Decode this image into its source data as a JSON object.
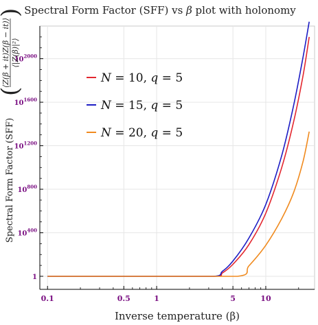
{
  "chart_data": {
    "type": "line",
    "title": "Spectral Form Factor (SFF) vs β plot with holonomy",
    "title_parts": {
      "before": "Spectral Form Factor (SFF) vs ",
      "beta": "β",
      "after": " plot with holonomy"
    },
    "xlabel": "Inverse temperature (β)",
    "ylabel": "Spectral Form Factor (SFF)",
    "ylabel_formula": {
      "numerator": "⟨Z(β + it)Z(β − it)⟩",
      "denominator": "⟨|Z(β)|²⟩"
    },
    "x_scale": "log",
    "xlim": [
      0.085,
      28
    ],
    "y_scale": "log10",
    "ylim_log10": [
      -120,
      2300
    ],
    "x_ticks": [
      {
        "value": 0.1,
        "label": "0.1"
      },
      {
        "value": 0.5,
        "label": "0.5"
      },
      {
        "value": 1,
        "label": "1"
      },
      {
        "value": 5,
        "label": "5"
      },
      {
        "value": 10,
        "label": "10"
      }
    ],
    "y_ticks": [
      {
        "log10": 0,
        "base": "1",
        "exp": ""
      },
      {
        "log10": 400,
        "base": "10",
        "exp": "400"
      },
      {
        "log10": 800,
        "base": "10",
        "exp": "800"
      },
      {
        "log10": 1200,
        "base": "10",
        "exp": "1200"
      },
      {
        "log10": 1600,
        "base": "10",
        "exp": "1600"
      },
      {
        "log10": 2000,
        "base": "10",
        "exp": "2000"
      }
    ],
    "grid": true,
    "legend_position": "top-left",
    "series": [
      {
        "name": "N = 10, q = 5",
        "color": "#e3262e",
        "x": [
          0.1,
          1,
          3.4,
          4,
          5,
          7,
          10,
          14,
          18,
          22,
          25
        ],
        "log10_y": [
          0,
          0,
          0,
          30,
          110,
          290,
          580,
          1000,
          1420,
          1850,
          2200
        ]
      },
      {
        "name": "N = 15, q = 5",
        "color": "#1c1cc4",
        "x": [
          0.1,
          1,
          3.3,
          4,
          5,
          7,
          10,
          14,
          18,
          22,
          25
        ],
        "log10_y": [
          0,
          0,
          0,
          45,
          140,
          350,
          660,
          1110,
          1570,
          2020,
          2340
        ]
      },
      {
        "name": "N = 20, q = 5",
        "color": "#f08a1e",
        "x": [
          0.1,
          1,
          5.5,
          7,
          10,
          14,
          18,
          22,
          25
        ],
        "log10_y": [
          0,
          0,
          0,
          95,
          285,
          530,
          770,
          1060,
          1330
        ]
      }
    ],
    "legend_labels": [
      {
        "var1": "N",
        "val1": "10",
        "var2": "q",
        "val2": "5"
      },
      {
        "var1": "N",
        "val1": "15",
        "var2": "q",
        "val2": "5"
      },
      {
        "var1": "N",
        "val1": "20",
        "var2": "q",
        "val2": "5"
      }
    ],
    "colors": {
      "tick_label": "#7a0f82",
      "axis": "#000000",
      "grid": "#e6e6e6"
    }
  }
}
